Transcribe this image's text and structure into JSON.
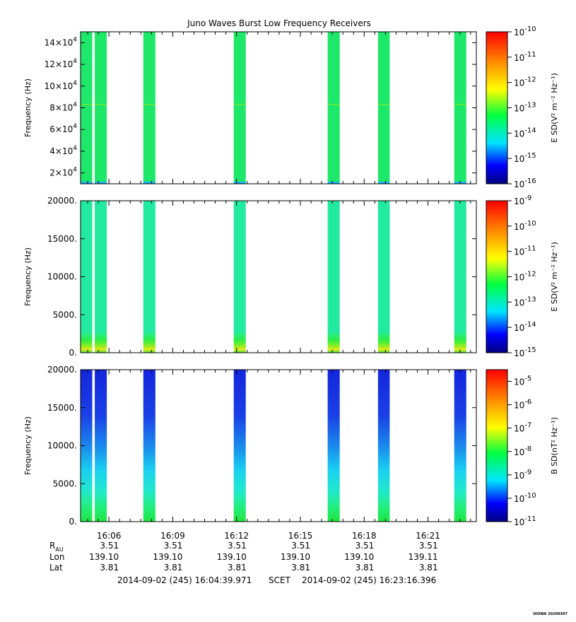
{
  "chart_data": {
    "type": "heatmap",
    "title": "Juno Waves Burst Low Frequency Receivers",
    "x_axis": {
      "unit": "time (SCET)",
      "start": "16:04:39.971",
      "end": "16:23:16.396",
      "tick_labels": [
        "16:06",
        "16:09",
        "16:12",
        "16:15",
        "16:18",
        "16:21"
      ]
    },
    "burst_intervals": [
      {
        "start": "16:04:39",
        "end": "16:05:13"
      },
      {
        "start": "16:05:20",
        "end": "16:05:54"
      },
      {
        "start": "16:07:37",
        "end": "16:08:11"
      },
      {
        "start": "16:11:52",
        "end": "16:12:26"
      },
      {
        "start": "16:16:17",
        "end": "16:16:51"
      },
      {
        "start": "16:18:39",
        "end": "16:19:12"
      },
      {
        "start": "16:22:14",
        "end": "16:22:48"
      }
    ],
    "panels": [
      {
        "id": "panel-1",
        "ylabel": "Frequency (Hz)",
        "yrange": [
          10000,
          150000
        ],
        "yticks": [
          {
            "value": 20000,
            "mant": "2×10",
            "exp": "4"
          },
          {
            "value": 40000,
            "mant": "4×10",
            "exp": "4"
          },
          {
            "value": 60000,
            "mant": "6×10",
            "exp": "4"
          },
          {
            "value": 80000,
            "mant": "8×10",
            "exp": "4"
          },
          {
            "value": 100000,
            "mant": "10×10",
            "exp": "4"
          },
          {
            "value": 120000,
            "mant": "12×10",
            "exp": "4"
          },
          {
            "value": 140000,
            "mant": "14×10",
            "exp": "4"
          }
        ],
        "colorbar_label": "E SD(V² m⁻² Hz⁻¹)",
        "colorbar_ticks": [
          "10-16",
          "10-15",
          "10-14",
          "10-13",
          "10-12",
          "10-11",
          "10-10"
        ],
        "colorbar_exp_range": [
          -16,
          -10
        ],
        "colorbar_exps": [
          -16,
          -15,
          -14,
          -13,
          -12,
          -11,
          -10
        ],
        "fill_color": "#1ee86a",
        "line_frequency": 83000
      },
      {
        "id": "panel-2",
        "ylabel": "Frequency (Hz)",
        "yrange": [
          0,
          20000
        ],
        "yticks": [
          {
            "value": 0,
            "label": "0."
          },
          {
            "value": 5000,
            "label": "5000."
          },
          {
            "value": 10000,
            "label": "10000."
          },
          {
            "value": 15000,
            "label": "15000."
          },
          {
            "value": 20000,
            "label": "20000."
          }
        ],
        "colorbar_label": "E SD(V² m⁻² Hz⁻¹)",
        "colorbar_ticks": [
          "10-15",
          "10-14",
          "10-13",
          "10-12",
          "10-11",
          "10-10",
          "10-9"
        ],
        "colorbar_exp_range": [
          -15,
          -9
        ],
        "colorbar_exps": [
          -15,
          -14,
          -13,
          -12,
          -11,
          -10,
          -9
        ],
        "fill_color": "#22eaa0"
      },
      {
        "id": "panel-3",
        "ylabel": "Frequency (Hz)",
        "yrange": [
          0,
          20000
        ],
        "yticks": [
          {
            "value": 0,
            "label": "0."
          },
          {
            "value": 5000,
            "label": "5000."
          },
          {
            "value": 10000,
            "label": "10000."
          },
          {
            "value": 15000,
            "label": "15000."
          },
          {
            "value": 20000,
            "label": "20000."
          }
        ],
        "colorbar_label": "B SD(nT² Hz⁻¹)",
        "colorbar_ticks": [
          "10-11",
          "10-10",
          "10-9",
          "10-8",
          "10-7",
          "10-6",
          "10-5"
        ],
        "colorbar_exp_range": [
          -11,
          -4.5
        ],
        "colorbar_exps": [
          -11,
          -10,
          -9,
          -8,
          -7,
          -6,
          -5
        ],
        "fill_color": "#1530e0"
      }
    ]
  },
  "ephemeris": {
    "rows": [
      {
        "label": "R",
        "sub": "AU",
        "values": [
          "3.51",
          "3.51",
          "3.51",
          "3.51",
          "3.51",
          "3.51"
        ]
      },
      {
        "label": "Lon",
        "values": [
          "139.10",
          "139.10",
          "139.10",
          "139.10",
          "139.10",
          "139.11"
        ]
      },
      {
        "label": "Lat",
        "values": [
          "3.81",
          "3.81",
          "3.81",
          "3.81",
          "3.81",
          "3.81"
        ]
      }
    ]
  },
  "footer": {
    "start_label": "2014-09-02 (245) 16:04:39.971",
    "frame_label": "SCET",
    "end_label": "2014-09-02 (245) 16:23:16.396"
  },
  "credit": "UIOWA 20200307"
}
